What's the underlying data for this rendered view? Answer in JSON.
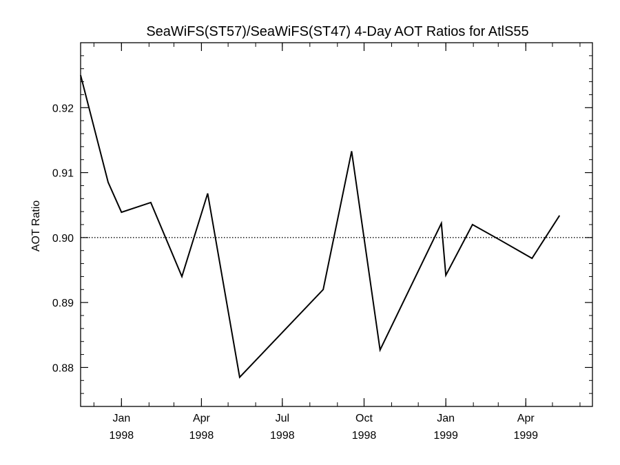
{
  "chart_data": {
    "type": "line",
    "title": "SeaWiFS(ST57)/SeaWiFS(ST47) 4-Day AOT Ratios for AtlS55",
    "xlabel": "",
    "ylabel": "AOT Ratio",
    "xlim": [
      "1997-11-16",
      "1999-06-15"
    ],
    "ylim": [
      0.874,
      0.93
    ],
    "y_ticks": [
      0.88,
      0.89,
      0.9,
      0.91,
      0.92
    ],
    "y_tick_labels": [
      "0.88",
      "0.89",
      "0.90",
      "0.91",
      "0.92"
    ],
    "x_ticks": [
      {
        "date": "1998-01-01",
        "label": [
          "Jan",
          "1998"
        ]
      },
      {
        "date": "1998-04-01",
        "label": [
          "Apr",
          "1998"
        ]
      },
      {
        "date": "1998-07-01",
        "label": [
          "Jul",
          "1998"
        ]
      },
      {
        "date": "1998-10-01",
        "label": [
          "Oct",
          "1998"
        ]
      },
      {
        "date": "1999-01-01",
        "label": [
          "Jan",
          "1999"
        ]
      },
      {
        "date": "1999-04-01",
        "label": [
          "Apr",
          "1999"
        ]
      }
    ],
    "reference_line": {
      "y": 0.9,
      "style": "dotted"
    },
    "series": [
      {
        "x": [
          "1997-11-16",
          "1997-12-17",
          "1998-01-01",
          "1998-02-03",
          "1998-03-10",
          "1998-04-08",
          "1998-05-14",
          "1998-08-16",
          "1998-09-17",
          "1998-10-19",
          "1998-12-27",
          "1999-01-01",
          "1999-01-31",
          "1999-03-02",
          "1999-04-08",
          "1999-05-09"
        ],
        "y": [
          0.925,
          0.9085,
          0.9039,
          0.9054,
          0.894,
          0.9068,
          0.8785,
          0.892,
          0.9133,
          0.8827,
          0.9022,
          0.8942,
          0.902,
          0.8997,
          0.8968,
          0.9034
        ],
        "color": "#000000"
      }
    ],
    "grid": false,
    "minor_ticks": true
  }
}
